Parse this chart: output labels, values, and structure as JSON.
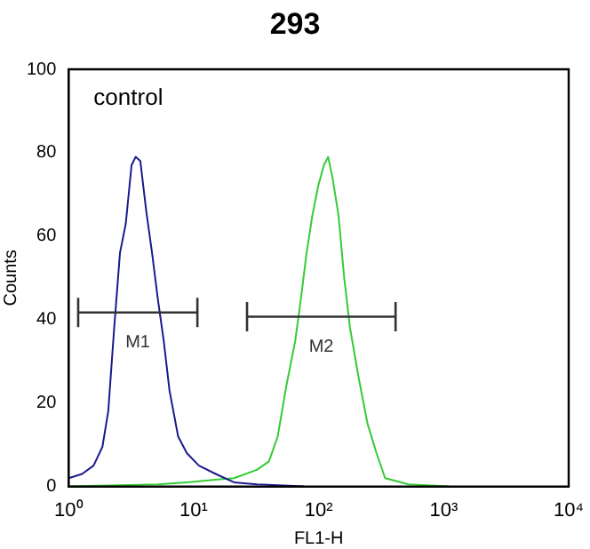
{
  "chart_data": {
    "type": "line",
    "title": "293",
    "xlabel": "FL1-H",
    "ylabel": "Counts",
    "log": "x",
    "xlim": [
      1,
      10000
    ],
    "xticks": [
      {
        "value": 1,
        "label": "10⁰"
      },
      {
        "value": 10,
        "label": "10¹"
      },
      {
        "value": 100,
        "label": "10²"
      },
      {
        "value": 1000,
        "label": "10³"
      },
      {
        "value": 10000,
        "label": "10⁴"
      }
    ],
    "ylim": [
      0,
      100
    ],
    "yticks": [
      0,
      20,
      40,
      60,
      80,
      100
    ],
    "grid": false,
    "legend": false,
    "marker": "none",
    "line_style": "solid",
    "annotations": [
      "control"
    ],
    "series": [
      {
        "name": "M1",
        "color": "#333333",
        "x": [
          1.19,
          10.7
        ],
        "values": [
          41.7,
          41.7
        ],
        "errors": [
          3.5,
          3.5
        ]
      },
      {
        "name": "M2",
        "color": "#333333",
        "x": [
          26.7,
          412
        ],
        "values": [
          40.7,
          40.7
        ],
        "errors": [
          3.5,
          3.5
        ]
      },
      {
        "color": "#1a1a8c",
        "x": [
          1,
          1.28,
          1.58,
          1.86,
          2.07,
          2.31,
          2.57,
          2.86,
          3.18,
          3.43,
          3.74,
          4.17,
          4.64,
          5.16,
          5.75,
          6.4,
          7.5,
          8.8,
          11,
          15,
          21,
          32,
          76
        ],
        "values": [
          2,
          3,
          5,
          9.5,
          18,
          38,
          56,
          63,
          77,
          79,
          78,
          66,
          56,
          45,
          35,
          23,
          12,
          8,
          5,
          3,
          1,
          0.5,
          0
        ]
      },
      {
        "color": "#33cc33",
        "x": [
          1,
          5.2,
          8.8,
          21,
          32,
          40,
          47,
          55,
          65,
          72,
          80,
          89,
          99,
          110,
          119,
          129,
          144,
          160,
          178,
          209,
          246,
          290,
          340,
          524,
          1100
        ],
        "values": [
          0,
          0.5,
          1,
          2,
          4,
          6,
          12,
          24,
          35,
          45,
          56,
          65,
          72,
          77,
          79,
          74,
          65,
          50,
          38,
          26,
          15,
          8,
          2,
          0.5,
          0
        ]
      }
    ]
  }
}
